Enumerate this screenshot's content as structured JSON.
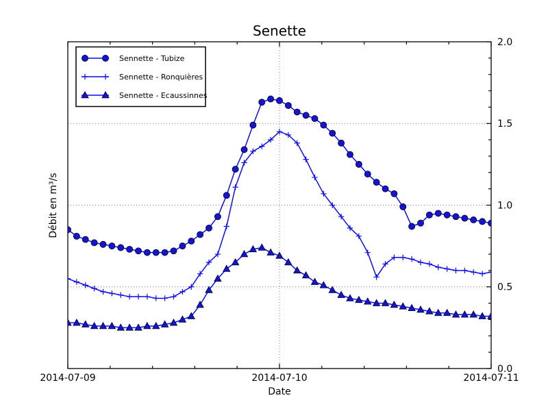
{
  "chart_data": {
    "type": "line",
    "title": "Senette",
    "xlabel": "Date",
    "ylabel": "Débit en m³/s",
    "ylim": [
      0.0,
      2.0
    ],
    "xlim_hours": [
      0,
      48
    ],
    "x_start": "2014-07-09 00:00",
    "x_step_hours": 1,
    "x_points": 49,
    "grid": {
      "y_values": [
        0.5,
        1.0,
        1.5
      ],
      "x_hours": [
        24
      ]
    },
    "x_minor_tick_hours": [
      4.8,
      9.6,
      14.4,
      19.2,
      28.8,
      33.6,
      38.4,
      43.2
    ],
    "y_minor_step": 0.1,
    "legend_position": "upper left",
    "x_ticks": [
      {
        "hour": 0,
        "label": "2014-07-09"
      },
      {
        "hour": 24,
        "label": "2014-07-10"
      },
      {
        "hour": 48,
        "label": "2014-07-11"
      }
    ],
    "y_ticks": [
      {
        "value": 0.0,
        "label": "0.0"
      },
      {
        "value": 0.5,
        "label": "0.5"
      },
      {
        "value": 1.0,
        "label": "1.0"
      },
      {
        "value": 1.5,
        "label": "1.5"
      },
      {
        "value": 2.0,
        "label": "2.0"
      }
    ],
    "series": [
      {
        "name": "Sennette - Tubize",
        "marker": "circle",
        "values": [
          0.85,
          0.81,
          0.79,
          0.77,
          0.76,
          0.75,
          0.74,
          0.73,
          0.72,
          0.71,
          0.71,
          0.71,
          0.72,
          0.75,
          0.78,
          0.82,
          0.86,
          0.93,
          1.06,
          1.22,
          1.34,
          1.49,
          1.63,
          1.65,
          1.64,
          1.61,
          1.57,
          1.55,
          1.53,
          1.49,
          1.44,
          1.38,
          1.31,
          1.25,
          1.19,
          1.14,
          1.1,
          1.07,
          0.99,
          0.87,
          0.89,
          0.94,
          0.95,
          0.94,
          0.93,
          0.92,
          0.91,
          0.9,
          0.89
        ]
      },
      {
        "name": "Sennette - Ronquières",
        "marker": "plus",
        "values": [
          0.55,
          0.53,
          0.51,
          0.49,
          0.47,
          0.46,
          0.45,
          0.44,
          0.44,
          0.44,
          0.43,
          0.43,
          0.44,
          0.47,
          0.5,
          0.58,
          0.65,
          0.7,
          0.87,
          1.11,
          1.26,
          1.33,
          1.36,
          1.4,
          1.45,
          1.43,
          1.38,
          1.28,
          1.17,
          1.07,
          1.0,
          0.93,
          0.86,
          0.81,
          0.71,
          0.56,
          0.64,
          0.68,
          0.68,
          0.67,
          0.65,
          0.64,
          0.62,
          0.61,
          0.6,
          0.6,
          0.59,
          0.58,
          0.59
        ]
      },
      {
        "name": "Sennette - Ecaussinnes",
        "marker": "triangle",
        "values": [
          0.28,
          0.28,
          0.27,
          0.26,
          0.26,
          0.26,
          0.25,
          0.25,
          0.25,
          0.26,
          0.26,
          0.27,
          0.28,
          0.3,
          0.32,
          0.39,
          0.48,
          0.55,
          0.61,
          0.65,
          0.7,
          0.73,
          0.74,
          0.71,
          0.69,
          0.65,
          0.6,
          0.57,
          0.53,
          0.51,
          0.48,
          0.45,
          0.43,
          0.42,
          0.41,
          0.4,
          0.4,
          0.39,
          0.38,
          0.37,
          0.36,
          0.35,
          0.34,
          0.34,
          0.33,
          0.33,
          0.33,
          0.32,
          0.32
        ]
      }
    ],
    "colors": {
      "line": "#0b0bee",
      "marker_fill": "#1515cc",
      "marker_edge": "#000042",
      "grid": "#777777",
      "axis": "#000000",
      "background": "#ffffff"
    }
  }
}
